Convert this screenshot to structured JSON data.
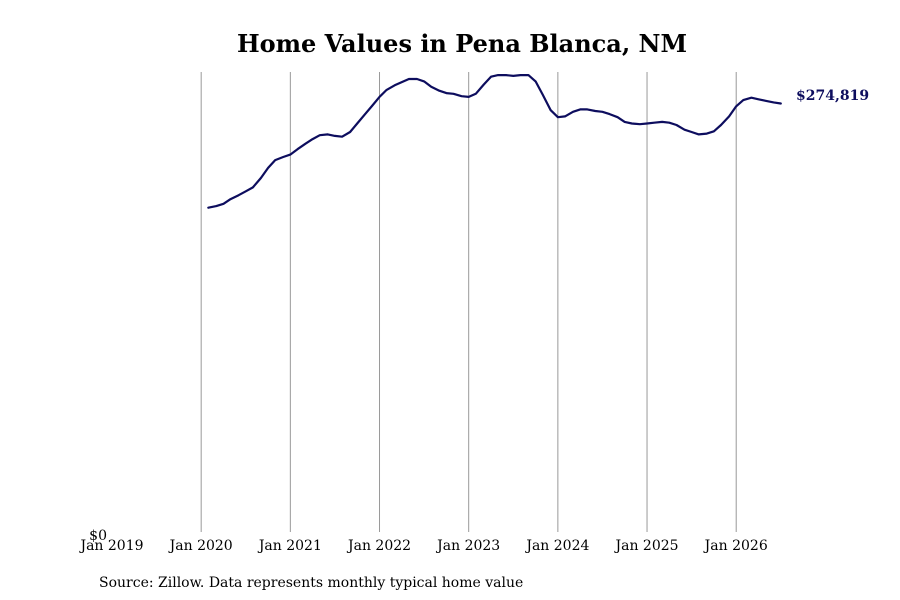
{
  "colors": {
    "line": "#0d0d5e",
    "grid": "#999999",
    "text": "#000000"
  },
  "chart_data": {
    "type": "line",
    "title": "Home Values in Pena Blanca, NM",
    "xlabel": "",
    "ylabel": "",
    "x_ticks": [
      {
        "label": "Jan 2019",
        "value": 2019
      },
      {
        "label": "Jan 2020",
        "value": 2020
      },
      {
        "label": "Jan 2021",
        "value": 2021
      },
      {
        "label": "Jan 2022",
        "value": 2022
      },
      {
        "label": "Jan 2023",
        "value": 2023
      },
      {
        "label": "Jan 2024",
        "value": 2024
      },
      {
        "label": "Jan 2025",
        "value": 2025
      },
      {
        "label": "Jan 2026",
        "value": 2026
      }
    ],
    "y_ticks": [
      {
        "label": "$0",
        "value": 0
      }
    ],
    "ylim": [
      0,
      295000
    ],
    "xlim": [
      2019,
      2026.85
    ],
    "grid": "vertical",
    "legend": "none",
    "end_label": "$274,819",
    "source": "Source: Zillow. Data represents monthly typical home value",
    "series": [
      {
        "x": [
          2020.08,
          2020.17,
          2020.25,
          2020.33,
          2020.42,
          2020.5,
          2020.58,
          2020.67,
          2020.75,
          2020.83,
          2020.92,
          2021.0,
          2021.08,
          2021.17,
          2021.25,
          2021.33,
          2021.42,
          2021.5,
          2021.58,
          2021.67,
          2021.75,
          2021.83,
          2021.92,
          2022.0,
          2022.08,
          2022.17,
          2022.25,
          2022.33,
          2022.42,
          2022.5,
          2022.58,
          2022.67,
          2022.75,
          2022.83,
          2022.92,
          2023.0,
          2023.08,
          2023.17,
          2023.25,
          2023.33,
          2023.42,
          2023.5,
          2023.58,
          2023.67,
          2023.75,
          2023.83,
          2023.92,
          2024.0,
          2024.08,
          2024.17,
          2024.25,
          2024.33,
          2024.42,
          2024.5,
          2024.58,
          2024.67,
          2024.75,
          2024.83,
          2024.92,
          2025.0,
          2025.08,
          2025.17,
          2025.25,
          2025.33,
          2025.42,
          2025.5,
          2025.58,
          2025.67,
          2025.75,
          2025.83,
          2025.92,
          2026.0,
          2026.08,
          2026.17,
          2026.25,
          2026.33,
          2026.42,
          2026.5
        ],
        "values": [
          208000,
          209000,
          210500,
          213500,
          216000,
          218500,
          221000,
          227000,
          233500,
          238500,
          240500,
          242000,
          245500,
          249000,
          252000,
          254500,
          255000,
          254000,
          253500,
          256500,
          262000,
          267500,
          273500,
          279000,
          283500,
          286500,
          288500,
          290500,
          290500,
          289000,
          285500,
          283000,
          281500,
          281000,
          279500,
          279000,
          281000,
          287000,
          292000,
          293000,
          293000,
          292500,
          293000,
          293000,
          289000,
          280500,
          270500,
          266000,
          266500,
          269500,
          271000,
          271000,
          270000,
          269500,
          268000,
          266000,
          263000,
          262000,
          261500,
          262000,
          262500,
          263000,
          262500,
          261000,
          258000,
          256500,
          255000,
          255500,
          257000,
          261000,
          266500,
          273000,
          277000,
          278500,
          277500,
          276500,
          275500,
          274819
        ]
      }
    ]
  }
}
